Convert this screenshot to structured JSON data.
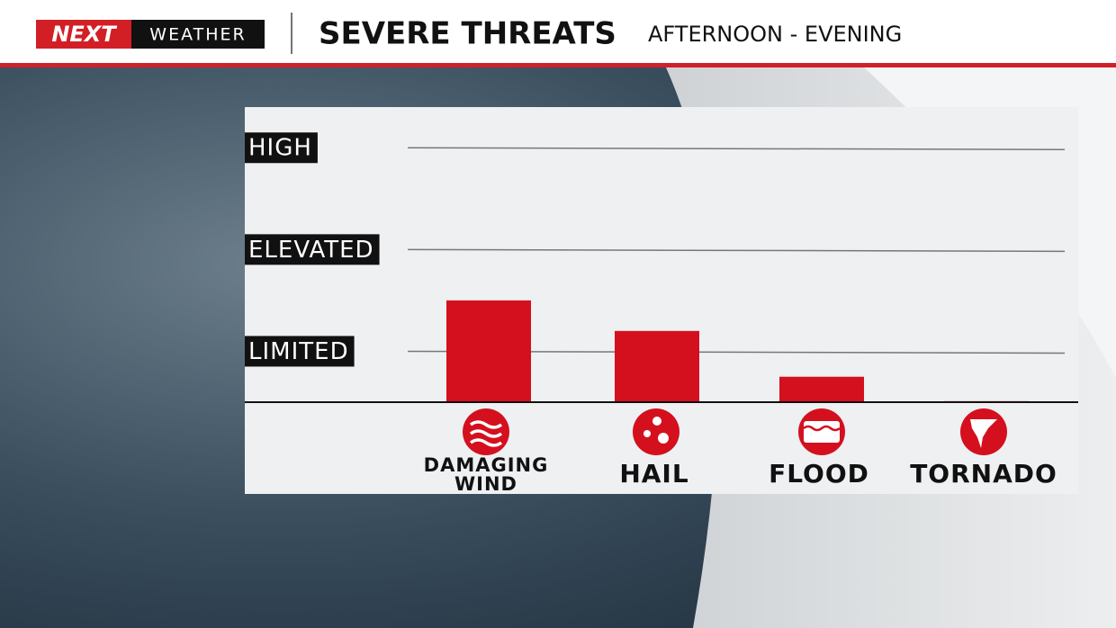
{
  "header": {
    "logo_brand": "NEXT",
    "logo_product": "WEATHER"
  },
  "chart_data": {
    "type": "bar",
    "title": "SEVERE THREATS",
    "subtitle": "AFTERNOON - EVENING",
    "categories": [
      "DAMAGING WIND",
      "HAIL",
      "FLOOD",
      "TORNADO"
    ],
    "values": [
      1.0,
      0.7,
      0.25,
      0.01
    ],
    "color": "#d4101f",
    "ylim": [
      0,
      2.9
    ],
    "yticks": [
      {
        "value": 0.5,
        "label": "LIMITED"
      },
      {
        "value": 1.5,
        "label": "ELEVATED"
      },
      {
        "value": 2.5,
        "label": "HIGH"
      }
    ],
    "grid": true
  }
}
